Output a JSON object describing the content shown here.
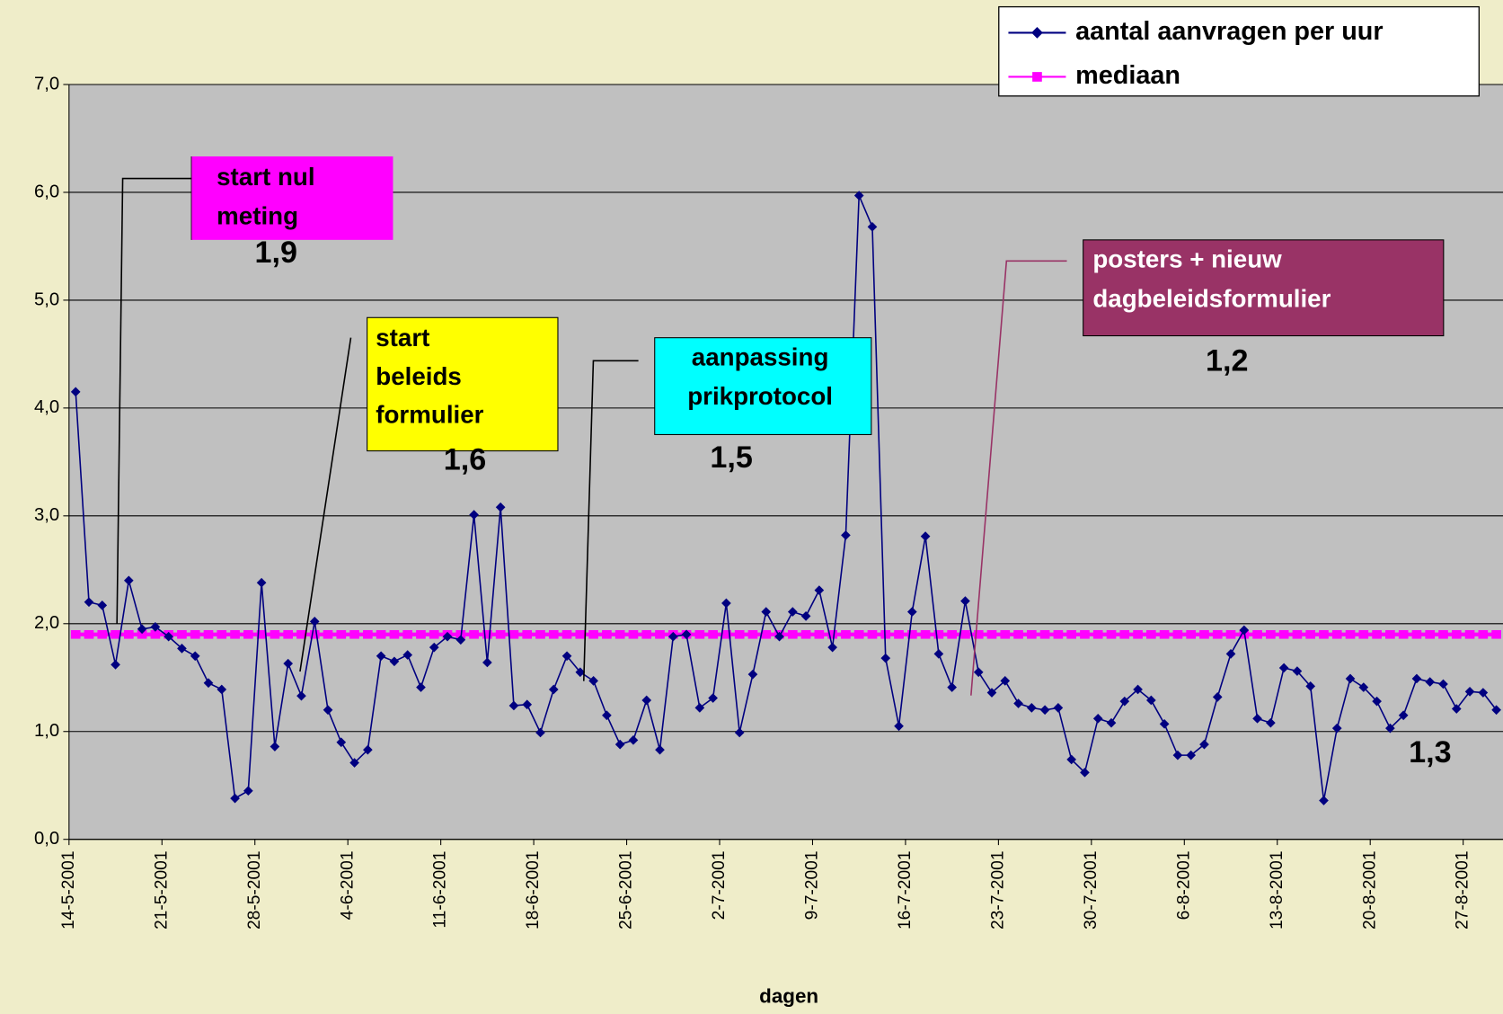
{
  "chart_data": {
    "type": "line",
    "x_label": "dagen",
    "categories": [
      "14-5-2001",
      null,
      null,
      null,
      null,
      null,
      null,
      "21-5-2001",
      null,
      null,
      null,
      null,
      null,
      null,
      "28-5-2001",
      null,
      null,
      null,
      null,
      null,
      null,
      "4-6-2001",
      null,
      null,
      null,
      null,
      null,
      null,
      "11-6-2001",
      null,
      null,
      null,
      null,
      null,
      null,
      "18-6-2001",
      null,
      null,
      null,
      null,
      null,
      null,
      "25-6-2001",
      null,
      null,
      null,
      null,
      null,
      null,
      "2-7-2001",
      null,
      null,
      null,
      null,
      null,
      null,
      "9-7-2001",
      null,
      null,
      null,
      null,
      null,
      null,
      "16-7-2001",
      null,
      null,
      null,
      null,
      null,
      null,
      "23-7-2001",
      null,
      null,
      null,
      null,
      null,
      null,
      "30-7-2001",
      null,
      null,
      null,
      null,
      null,
      null,
      "6-8-2001",
      null,
      null,
      null,
      null,
      null,
      null,
      "13-8-2001",
      null,
      null,
      null,
      null,
      null,
      null,
      "20-8-2001",
      null,
      null,
      null,
      null,
      null,
      null,
      "27-8-2001",
      null,
      null
    ],
    "series": [
      {
        "name": "aantal aanvragen per uur",
        "color": "#000080",
        "marker": "diamond",
        "values": [
          4.15,
          2.2,
          2.17,
          1.62,
          2.4,
          1.95,
          1.97,
          1.88,
          1.77,
          1.7,
          1.45,
          1.39,
          0.38,
          0.45,
          2.38,
          0.86,
          1.63,
          1.33,
          2.02,
          1.2,
          0.9,
          0.71,
          0.83,
          1.7,
          1.65,
          1.71,
          1.41,
          1.78,
          1.88,
          1.85,
          3.01,
          1.64,
          3.08,
          1.24,
          1.25,
          0.99,
          1.39,
          1.7,
          1.55,
          1.47,
          1.15,
          0.88,
          0.92,
          1.29,
          0.83,
          1.88,
          1.9,
          1.22,
          1.31,
          2.19,
          0.99,
          1.53,
          2.11,
          1.88,
          2.11,
          2.07,
          2.31,
          1.78,
          2.82,
          5.97,
          5.68,
          1.68,
          1.05,
          2.11,
          2.81,
          1.72,
          1.41,
          2.21,
          1.55,
          1.36,
          1.47,
          1.26,
          1.22,
          1.2,
          1.22,
          0.74,
          0.62,
          1.12,
          1.08,
          1.28,
          1.39,
          1.29,
          1.07,
          0.78,
          0.78,
          0.88,
          1.32,
          1.72,
          1.94,
          1.12,
          1.08,
          1.59,
          1.56,
          1.42,
          0.36,
          1.03,
          1.49,
          1.41,
          1.28,
          1.03,
          1.15,
          1.49,
          1.46,
          1.44,
          1.21,
          1.37,
          1.36,
          1.2
        ]
      },
      {
        "name": "mediaan",
        "color": "#ff00ff",
        "marker": "square",
        "values": [
          1.9,
          1.9,
          1.9,
          1.9,
          1.9,
          1.9,
          1.9,
          1.9,
          1.9,
          1.9,
          1.9,
          1.9,
          1.9,
          1.9,
          1.9,
          1.9,
          1.9,
          1.9,
          1.9,
          1.9,
          1.9,
          1.9,
          1.9,
          1.9,
          1.9,
          1.9,
          1.9,
          1.9,
          1.9,
          1.9,
          1.9,
          1.9,
          1.9,
          1.9,
          1.9,
          1.9,
          1.9,
          1.9,
          1.9,
          1.9,
          1.9,
          1.9,
          1.9,
          1.9,
          1.9,
          1.9,
          1.9,
          1.9,
          1.9,
          1.9,
          1.9,
          1.9,
          1.9,
          1.9,
          1.9,
          1.9,
          1.9,
          1.9,
          1.9,
          1.9,
          1.9,
          1.9,
          1.9,
          1.9,
          1.9,
          1.9,
          1.9,
          1.9,
          1.9,
          1.9,
          1.9,
          1.9,
          1.9,
          1.9,
          1.9,
          1.9,
          1.9,
          1.9,
          1.9,
          1.9,
          1.9,
          1.9,
          1.9,
          1.9,
          1.9,
          1.9,
          1.9,
          1.9,
          1.9,
          1.9,
          1.9,
          1.9,
          1.9,
          1.9,
          1.9,
          1.9,
          1.9,
          1.9,
          1.9,
          1.9,
          1.9,
          1.9,
          1.9,
          1.9,
          1.9,
          1.9,
          1.9,
          1.9
        ]
      }
    ],
    "ylim": [
      0,
      7
    ],
    "yticks": [
      {
        "value": 0,
        "label": "0,0"
      },
      {
        "value": 1,
        "label": "1,0"
      },
      {
        "value": 2,
        "label": "2,0"
      },
      {
        "value": 3,
        "label": "3,0"
      },
      {
        "value": 4,
        "label": "4,0"
      },
      {
        "value": 5,
        "label": "5,0"
      },
      {
        "value": 6,
        "label": "6,0"
      },
      {
        "value": 7,
        "label": "7,0"
      }
    ],
    "grid": true,
    "legend": "top-right",
    "plot_background": "#c0c0c0",
    "annotations": [
      {
        "lines": [
          "start nul",
          "meting"
        ],
        "color": "#ff00ff",
        "text_color": "#000000",
        "label": "1,9"
      },
      {
        "lines": [
          "start",
          "beleids",
          "formulier"
        ],
        "color": "#ffff00",
        "text_color": "#000000",
        "label": "1,6"
      },
      {
        "lines": [
          "aanpassing",
          "prikprotocol"
        ],
        "color": "#00ffff",
        "text_color": "#000000",
        "label": "1,5"
      },
      {
        "lines": [
          "posters + nieuw",
          "dagbeleidsformulier"
        ],
        "color": "#993366",
        "text_color": "#ffffff",
        "label": "1,2"
      },
      {
        "label": "1,3"
      }
    ]
  }
}
